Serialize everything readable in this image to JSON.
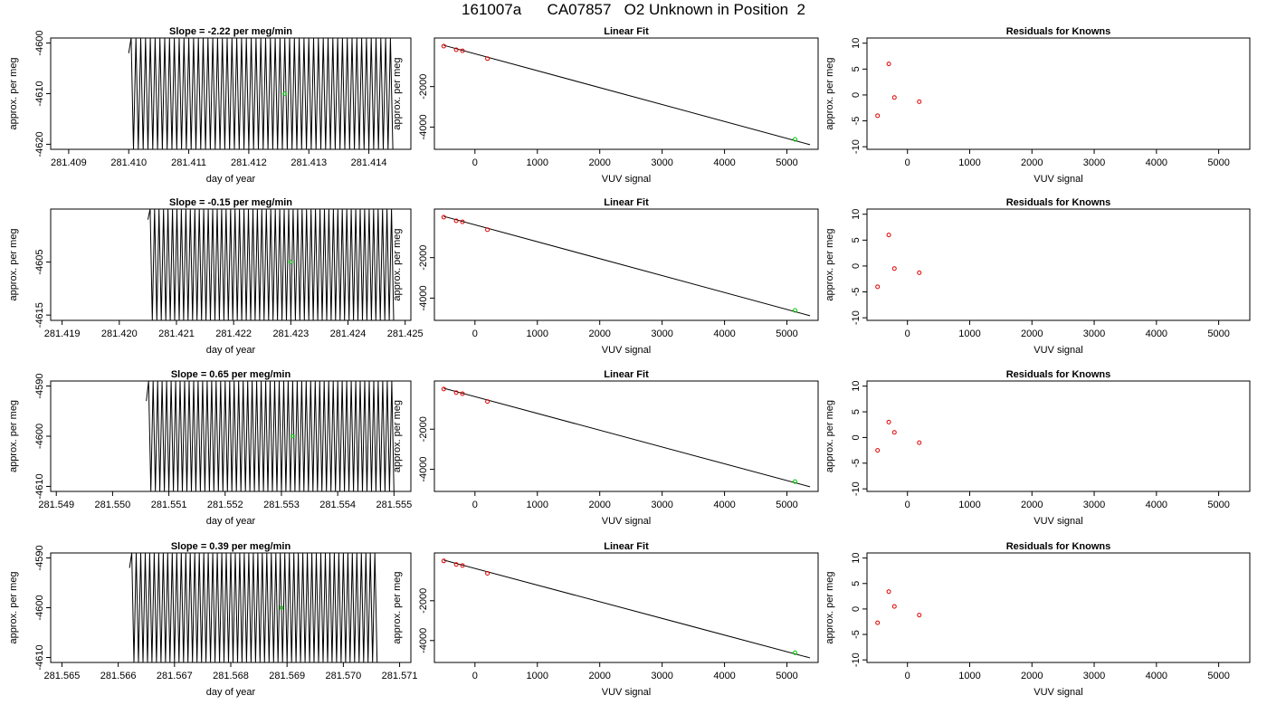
{
  "page_title": "161007a      CA07857   O2 Unknown in Position  2",
  "colors": {
    "line": "#000000",
    "known_point": "#dd0000",
    "unknown_point": "#00cc00"
  },
  "chart_data": [
    {
      "type": "line",
      "row": 0,
      "title": "Slope =  -2.22  per meg/min",
      "xlabel": "day of year",
      "ylabel": "approx. per meg",
      "xticks": [
        "281.409",
        "281.410",
        "281.411",
        "281.412",
        "281.413",
        "281.414"
      ],
      "xlim": [
        281.4087,
        281.4147
      ],
      "yticks": [
        "-4620",
        "-4610",
        "-4600"
      ],
      "ylim": [
        -4621,
        -4599
      ],
      "trace": {
        "x_start": 281.41,
        "x_end": 281.4144,
        "cycles": 55,
        "y_high": -4599,
        "y_low": -4621,
        "y_start": -4602
      },
      "marker": {
        "x": 281.4126,
        "y": -4610
      }
    },
    {
      "type": "scatter",
      "row": 0,
      "title": "Linear Fit",
      "xlabel": "VUV signal",
      "ylabel": "approx. per meg",
      "xticks": [
        "0",
        "1000",
        "2000",
        "3000",
        "4000",
        "5000"
      ],
      "xlim": [
        -650,
        5500
      ],
      "yticks": [
        "-4000",
        "-2000"
      ],
      "ylim": [
        -5100,
        400
      ],
      "known_points": [
        [
          -500,
          0
        ],
        [
          -300,
          -180
        ],
        [
          -200,
          -230
        ],
        [
          200,
          -620
        ]
      ],
      "unknown_point": [
        5130,
        -4610
      ],
      "fit_line": [
        [
          -500,
          40
        ],
        [
          5370,
          -4870
        ]
      ]
    },
    {
      "type": "scatter",
      "row": 0,
      "title": "Residuals for Knowns",
      "xlabel": "VUV signal",
      "ylabel": "approx. per meg",
      "xticks": [
        "0",
        "1000",
        "2000",
        "3000",
        "4000",
        "5000"
      ],
      "xlim": [
        -650,
        5500
      ],
      "yticks": [
        "-10",
        "-5",
        "0",
        "5",
        "10"
      ],
      "ylim": [
        -10.5,
        11
      ],
      "points": [
        [
          -480,
          -4
        ],
        [
          -300,
          6
        ],
        [
          -210,
          -0.5
        ],
        [
          190,
          -1.3
        ]
      ]
    },
    {
      "type": "line",
      "row": 1,
      "title": "Slope =  -0.15  per meg/min",
      "xlabel": "day of year",
      "ylabel": "approx. per meg",
      "xticks": [
        "281.419",
        "281.420",
        "281.421",
        "281.422",
        "281.423",
        "281.424",
        "281.425"
      ],
      "xlim": [
        281.4188,
        281.4251
      ],
      "yticks": [
        "-4615",
        "-4605"
      ],
      "ylim": [
        -4616,
        -4595
      ],
      "trace": {
        "x_start": 281.4205,
        "x_end": 281.4248,
        "cycles": 55,
        "y_high": -4595,
        "y_low": -4616,
        "y_start": -4597
      },
      "marker": {
        "x": 281.423,
        "y": -4605
      }
    },
    {
      "type": "scatter",
      "row": 1,
      "title": "Linear Fit",
      "xlabel": "VUV signal",
      "ylabel": "approx. per meg",
      "xticks": [
        "0",
        "1000",
        "2000",
        "3000",
        "4000",
        "5000"
      ],
      "xlim": [
        -650,
        5500
      ],
      "yticks": [
        "-4000",
        "-2000"
      ],
      "ylim": [
        -5100,
        400
      ],
      "known_points": [
        [
          -500,
          0
        ],
        [
          -300,
          -180
        ],
        [
          -200,
          -230
        ],
        [
          200,
          -620
        ]
      ],
      "unknown_point": [
        5130,
        -4610
      ],
      "fit_line": [
        [
          -500,
          40
        ],
        [
          5370,
          -4870
        ]
      ]
    },
    {
      "type": "scatter",
      "row": 1,
      "title": "Residuals for Knowns",
      "xlabel": "VUV signal",
      "ylabel": "approx. per meg",
      "xticks": [
        "0",
        "1000",
        "2000",
        "3000",
        "4000",
        "5000"
      ],
      "xlim": [
        -650,
        5500
      ],
      "yticks": [
        "-10",
        "-5",
        "0",
        "5",
        "10"
      ],
      "ylim": [
        -10.5,
        11
      ],
      "points": [
        [
          -480,
          -4
        ],
        [
          -300,
          6
        ],
        [
          -210,
          -0.5
        ],
        [
          190,
          -1.3
        ]
      ]
    },
    {
      "type": "line",
      "row": 2,
      "title": "Slope =  0.65  per meg/min",
      "xlabel": "day of year",
      "ylabel": "approx. per meg",
      "xticks": [
        "281.549",
        "281.550",
        "281.551",
        "281.552",
        "281.553",
        "281.554",
        "281.555"
      ],
      "xlim": [
        281.5489,
        281.5553
      ],
      "yticks": [
        "-4610",
        "-4600",
        "-4590"
      ],
      "ylim": [
        -4611,
        -4589
      ],
      "trace": {
        "x_start": 281.5506,
        "x_end": 281.555,
        "cycles": 55,
        "y_high": -4589,
        "y_low": -4611,
        "y_start": -4593
      },
      "marker": {
        "x": 281.5532,
        "y": -4600
      }
    },
    {
      "type": "scatter",
      "row": 2,
      "title": "Linear Fit",
      "xlabel": "VUV signal",
      "ylabel": "approx. per meg",
      "xticks": [
        "0",
        "1000",
        "2000",
        "3000",
        "4000",
        "5000"
      ],
      "xlim": [
        -650,
        5500
      ],
      "yticks": [
        "-4000",
        "-2000"
      ],
      "ylim": [
        -5100,
        400
      ],
      "known_points": [
        [
          -500,
          0
        ],
        [
          -300,
          -180
        ],
        [
          -200,
          -230
        ],
        [
          200,
          -620
        ]
      ],
      "unknown_point": [
        5130,
        -4610
      ],
      "fit_line": [
        [
          -500,
          40
        ],
        [
          5370,
          -4870
        ]
      ]
    },
    {
      "type": "scatter",
      "row": 2,
      "title": "Residuals for Knowns",
      "xlabel": "VUV signal",
      "ylabel": "approx. per meg",
      "xticks": [
        "0",
        "1000",
        "2000",
        "3000",
        "4000",
        "5000"
      ],
      "xlim": [
        -650,
        5500
      ],
      "yticks": [
        "-10",
        "-5",
        "0",
        "5",
        "10"
      ],
      "ylim": [
        -10.5,
        11
      ],
      "points": [
        [
          -480,
          -2.5
        ],
        [
          -300,
          3
        ],
        [
          -210,
          1
        ],
        [
          190,
          -1
        ]
      ]
    },
    {
      "type": "line",
      "row": 3,
      "title": "Slope =  0.39  per meg/min",
      "xlabel": "day of year",
      "ylabel": "approx. per meg",
      "xticks": [
        "281.565",
        "281.566",
        "281.567",
        "281.568",
        "281.569",
        "281.570",
        "281.571"
      ],
      "xlim": [
        281.5648,
        281.5712
      ],
      "yticks": [
        "-4610",
        "-4600",
        "-4590"
      ],
      "ylim": [
        -4611,
        -4589
      ],
      "trace": {
        "x_start": 281.5662,
        "x_end": 281.5706,
        "cycles": 55,
        "y_high": -4589,
        "y_low": -4611,
        "y_start": -4592
      },
      "marker": {
        "x": 281.5689,
        "y": -4600
      }
    },
    {
      "type": "scatter",
      "row": 3,
      "title": "Linear Fit",
      "xlabel": "VUV signal",
      "ylabel": "approx. per meg",
      "xticks": [
        "0",
        "1000",
        "2000",
        "3000",
        "4000",
        "5000"
      ],
      "xlim": [
        -650,
        5500
      ],
      "yticks": [
        "-4000",
        "-2000"
      ],
      "ylim": [
        -5100,
        400
      ],
      "known_points": [
        [
          -500,
          0
        ],
        [
          -300,
          -180
        ],
        [
          -200,
          -230
        ],
        [
          200,
          -620
        ]
      ],
      "unknown_point": [
        5130,
        -4610
      ],
      "fit_line": [
        [
          -500,
          40
        ],
        [
          5370,
          -4870
        ]
      ]
    },
    {
      "type": "scatter",
      "row": 3,
      "title": "Residuals for Knowns",
      "xlabel": "VUV signal",
      "ylabel": "approx. per meg",
      "xticks": [
        "0",
        "1000",
        "2000",
        "3000",
        "4000",
        "5000"
      ],
      "xlim": [
        -650,
        5500
      ],
      "yticks": [
        "-10",
        "-5",
        "0",
        "5",
        "10"
      ],
      "ylim": [
        -10.5,
        11
      ],
      "points": [
        [
          -480,
          -2.7
        ],
        [
          -300,
          3.4
        ],
        [
          -210,
          0.5
        ],
        [
          190,
          -1.2
        ]
      ]
    }
  ]
}
